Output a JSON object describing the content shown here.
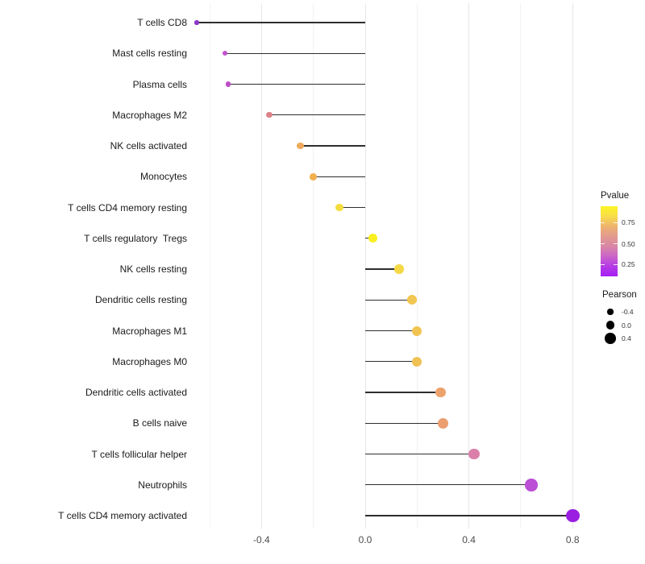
{
  "chart_data": {
    "type": "scatter",
    "style": "lollipop",
    "orientation": "horizontal",
    "title": "",
    "xlabel": "",
    "ylabel": "",
    "x_ticks": [
      "-0.4",
      "0.0",
      "0.4",
      "0.8"
    ],
    "x_tick_values": [
      -0.4,
      0.0,
      0.4,
      0.8
    ],
    "x_minor_gridline_values": [
      -0.6,
      -0.2,
      0.2,
      0.6
    ],
    "xlim": [
      -0.67,
      0.87
    ],
    "grid": "vertical-only",
    "legend_position": "right",
    "rows": [
      {
        "label": "T cells CD8",
        "pearson": -0.65,
        "color": "#8c35c8"
      },
      {
        "label": "Mast cells resting",
        "pearson": -0.54,
        "color": "#c254cc"
      },
      {
        "label": "Plasma cells",
        "pearson": -0.53,
        "color": "#bd4cc6"
      },
      {
        "label": "Macrophages M2",
        "pearson": -0.37,
        "color": "#dd8289"
      },
      {
        "label": "NK cells activated",
        "pearson": -0.25,
        "color": "#eeaa5e"
      },
      {
        "label": "Monocytes",
        "pearson": -0.2,
        "color": "#f0b04e"
      },
      {
        "label": "T cells CD4 memory resting",
        "pearson": -0.1,
        "color": "#f5dc3f"
      },
      {
        "label": "T cells regulatory  Tregs",
        "pearson": 0.03,
        "color": "#f9ef21"
      },
      {
        "label": "NK cells resting",
        "pearson": 0.13,
        "color": "#f5d845"
      },
      {
        "label": "Dendritic cells resting",
        "pearson": 0.18,
        "color": "#f2c653"
      },
      {
        "label": "Macrophages M1",
        "pearson": 0.2,
        "color": "#f1c350"
      },
      {
        "label": "Macrophages M0",
        "pearson": 0.2,
        "color": "#f0c254"
      },
      {
        "label": "Dendritic cells activated",
        "pearson": 0.29,
        "color": "#eca26c"
      },
      {
        "label": "B cells naive",
        "pearson": 0.3,
        "color": "#eb9f70"
      },
      {
        "label": "T cells follicular helper",
        "pearson": 0.42,
        "color": "#db7fa9"
      },
      {
        "label": "Neutrophils",
        "pearson": 0.64,
        "color": "#bb4fd5"
      },
      {
        "label": "T cells CD4 memory activated",
        "pearson": 0.8,
        "color": "#9b1fe0"
      }
    ]
  },
  "legends": {
    "pvalue": {
      "title": "Pvalue",
      "tick_labels": [
        "0.75",
        "0.50",
        "0.25"
      ],
      "tick_positions_pct": [
        23,
        54,
        83
      ],
      "gradient": [
        "#fdf522",
        "#f8dd4a",
        "#eeb46f",
        "#e29a8e",
        "#d987a6",
        "#cb64c8",
        "#b53be6",
        "#a61df5"
      ]
    },
    "pearson": {
      "title": "Pearson",
      "items": [
        {
          "label": "-0.4",
          "value": -0.4
        },
        {
          "label": "0.0",
          "value": 0.0
        },
        {
          "label": "0.4",
          "value": 0.4
        }
      ]
    }
  },
  "colors": {
    "stem": "#2e2e2e",
    "grid_major": "#e7e7e7",
    "grid_minor": "#f2f2f2",
    "axis_text": "#4d4d4d",
    "label_text": "#1a1a1a"
  }
}
